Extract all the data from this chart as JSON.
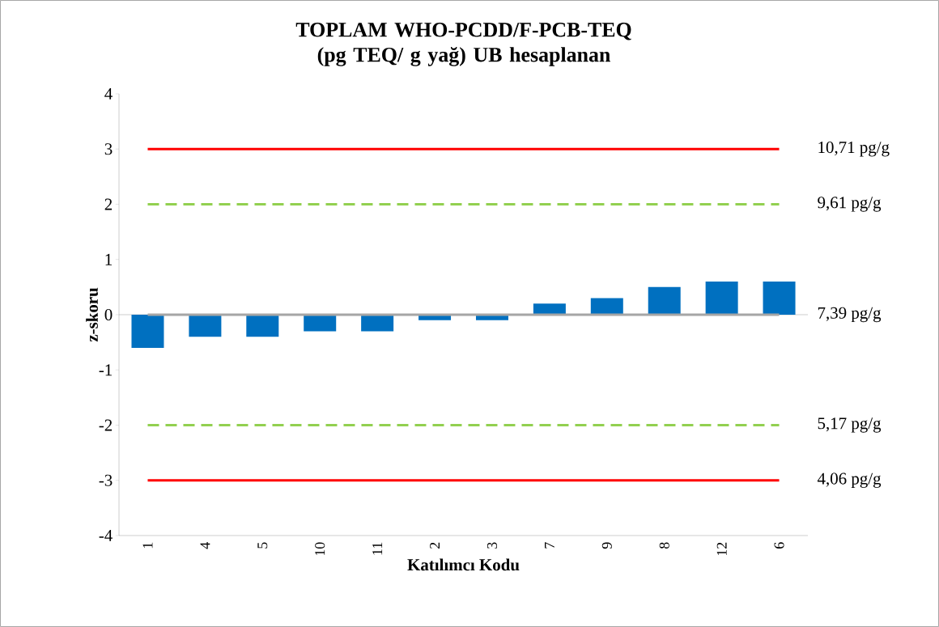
{
  "chart_data": {
    "type": "bar",
    "title": "TOPLAM WHO-PCDD/F-PCB-TEQ\n(pg TEQ/ g yağ) UB hesaplanan",
    "xlabel": "Katılımcı Kodu",
    "ylabel": "z-skoru",
    "categories": [
      "1",
      "4",
      "5",
      "10",
      "11",
      "2",
      "3",
      "7",
      "9",
      "8",
      "12",
      "6"
    ],
    "values": [
      -0.6,
      -0.4,
      -0.4,
      -0.3,
      -0.3,
      -0.1,
      -0.1,
      0.2,
      0.3,
      0.5,
      0.6,
      0.6
    ],
    "color": "#0070c0",
    "ylim": [
      -4,
      4
    ],
    "yticks": [
      -4,
      -3,
      -2,
      -1,
      0,
      1,
      2,
      3,
      4
    ],
    "grid": false,
    "ref_lines": [
      {
        "axis": "y",
        "value": 3,
        "label": "10,71 pg/g",
        "color": "#ff0000",
        "line_style": "solid"
      },
      {
        "axis": "y",
        "value": 2,
        "label": "9,61 pg/g",
        "color": "#92d050",
        "line_style": "dashed"
      },
      {
        "axis": "y",
        "value": 0,
        "label": "7,39 pg/g",
        "color": "#a6a6a6",
        "line_style": "solid"
      },
      {
        "axis": "y",
        "value": -2,
        "label": "5,17 pg/g",
        "color": "#92d050",
        "line_style": "dashed"
      },
      {
        "axis": "y",
        "value": -3,
        "label": "4,06 pg/g",
        "color": "#ff0000",
        "line_style": "solid"
      }
    ]
  }
}
